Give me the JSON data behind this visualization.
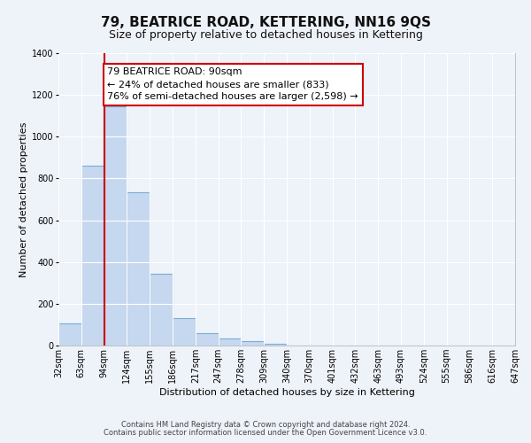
{
  "title": "79, BEATRICE ROAD, KETTERING, NN16 9QS",
  "subtitle": "Size of property relative to detached houses in Kettering",
  "xlabel": "Distribution of detached houses by size in Kettering",
  "ylabel": "Number of detached properties",
  "bar_values": [
    105,
    860,
    1145,
    735,
    345,
    130,
    60,
    35,
    20,
    10,
    0,
    0,
    0,
    0,
    0,
    0,
    0,
    0,
    0,
    0
  ],
  "bin_labels": [
    "32sqm",
    "63sqm",
    "94sqm",
    "124sqm",
    "155sqm",
    "186sqm",
    "217sqm",
    "247sqm",
    "278sqm",
    "309sqm",
    "340sqm",
    "370sqm",
    "401sqm",
    "432sqm",
    "463sqm",
    "493sqm",
    "524sqm",
    "555sqm",
    "586sqm",
    "616sqm",
    "647sqm"
  ],
  "n_bins": 20,
  "bin_width": 1,
  "vline_x": 2,
  "vline_color": "#cc0000",
  "bar_color": "#c5d8ef",
  "bar_edge_color": "#7aaed6",
  "annotation_text": "79 BEATRICE ROAD: 90sqm\n← 24% of detached houses are smaller (833)\n76% of semi-detached houses are larger (2,598) →",
  "annotation_box_color": "#ffffff",
  "annotation_box_edge": "#cc0000",
  "ylim": [
    0,
    1400
  ],
  "yticks": [
    0,
    200,
    400,
    600,
    800,
    1000,
    1200,
    1400
  ],
  "footer_line1": "Contains HM Land Registry data © Crown copyright and database right 2024.",
  "footer_line2": "Contains public sector information licensed under the Open Government Licence v3.0.",
  "background_color": "#eef2f9",
  "grid_color": "#ffffff",
  "title_fontsize": 11,
  "subtitle_fontsize": 9,
  "axis_label_fontsize": 8,
  "tick_fontsize": 7,
  "annotation_fontsize": 8,
  "footer_fontsize": 6
}
